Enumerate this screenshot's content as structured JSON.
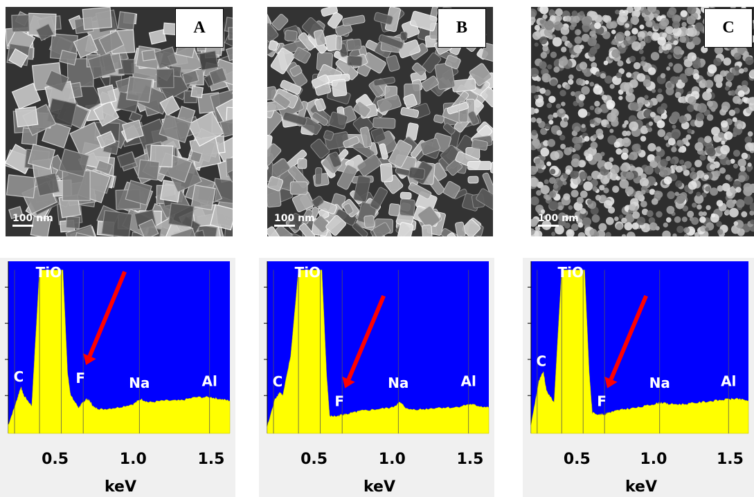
{
  "panels": [
    {
      "label": "A",
      "scale_bar": "100 nm",
      "eds": {
        "peak_labels": [
          "TiO",
          "C",
          "F",
          "Na",
          "Al"
        ],
        "xticks": [
          "0.5",
          "1.0",
          "1.5"
        ],
        "xlabel": "keV"
      }
    },
    {
      "label": "B",
      "scale_bar": "100 nm",
      "eds": {
        "peak_labels": [
          "TiO",
          "C",
          "F",
          "Na",
          "Al"
        ],
        "xticks": [
          "0.5",
          "1.0",
          "1.5"
        ],
        "xlabel": "keV"
      }
    },
    {
      "label": "C",
      "scale_bar": "100 nm",
      "eds": {
        "peak_labels": [
          "TiO",
          "C",
          "F",
          "Na",
          "Al"
        ],
        "xticks": [
          "0.5",
          "1.0",
          "1.5"
        ],
        "xlabel": "keV"
      }
    }
  ],
  "colors": {
    "plot_background": "#0000ff",
    "spectrum_fill": "#ffff00",
    "arrow": "#ff0000",
    "panel_frame": "#f0f0f0"
  },
  "chart_data": [
    {
      "type": "area",
      "panel": "A",
      "x": [
        0.2,
        0.25,
        0.28,
        0.3,
        0.35,
        0.4,
        0.5,
        0.55,
        0.58,
        0.6,
        0.65,
        0.68,
        0.7,
        0.72,
        0.75,
        0.8,
        0.9,
        1.0,
        1.05,
        1.1,
        1.2,
        1.3,
        1.4,
        1.5,
        1.55,
        1.62
      ],
      "values": [
        0.05,
        0.18,
        0.27,
        0.22,
        0.16,
        0.95,
        0.95,
        0.95,
        0.35,
        0.22,
        0.15,
        0.18,
        0.2,
        0.19,
        0.15,
        0.14,
        0.15,
        0.17,
        0.2,
        0.18,
        0.19,
        0.19,
        0.21,
        0.21,
        0.2,
        0.19
      ],
      "xlim": [
        0.2,
        1.62
      ],
      "ylim": [
        0,
        1
      ],
      "peaks": {
        "C": 0.28,
        "TiO": 0.45,
        "F": 0.68,
        "Na": 1.04,
        "Al": 1.49
      },
      "annotation_arrow": "F",
      "xticks": [
        0.5,
        1.0,
        1.5
      ],
      "xlabel": "keV"
    },
    {
      "type": "area",
      "panel": "B",
      "x": [
        0.2,
        0.25,
        0.28,
        0.3,
        0.35,
        0.4,
        0.5,
        0.55,
        0.58,
        0.6,
        0.65,
        0.68,
        0.7,
        0.75,
        0.8,
        0.9,
        1.0,
        1.05,
        1.1,
        1.2,
        1.3,
        1.4,
        1.5,
        1.55,
        1.62
      ],
      "values": [
        0.04,
        0.2,
        0.24,
        0.22,
        0.45,
        0.95,
        0.95,
        0.95,
        0.35,
        0.1,
        0.1,
        0.11,
        0.11,
        0.12,
        0.13,
        0.14,
        0.15,
        0.18,
        0.14,
        0.14,
        0.15,
        0.15,
        0.17,
        0.16,
        0.15
      ],
      "xlim": [
        0.2,
        1.62
      ],
      "ylim": [
        0,
        1
      ],
      "peaks": {
        "C": 0.28,
        "TiO": 0.45,
        "F": 0.68,
        "Na": 1.04,
        "Al": 1.49
      },
      "annotation_arrow": "F",
      "xticks": [
        0.5,
        1.0,
        1.5
      ],
      "xlabel": "keV"
    },
    {
      "type": "area",
      "panel": "C",
      "x": [
        0.2,
        0.25,
        0.28,
        0.3,
        0.35,
        0.4,
        0.5,
        0.55,
        0.58,
        0.6,
        0.65,
        0.68,
        0.7,
        0.75,
        0.8,
        0.9,
        1.0,
        1.05,
        1.1,
        1.2,
        1.3,
        1.4,
        1.5,
        1.55,
        1.62
      ],
      "values": [
        0.05,
        0.3,
        0.36,
        0.25,
        0.18,
        0.95,
        0.95,
        0.95,
        0.35,
        0.12,
        0.11,
        0.11,
        0.12,
        0.13,
        0.14,
        0.15,
        0.17,
        0.18,
        0.17,
        0.17,
        0.18,
        0.19,
        0.2,
        0.2,
        0.19
      ],
      "xlim": [
        0.2,
        1.62
      ],
      "ylim": [
        0,
        1
      ],
      "peaks": {
        "C": 0.28,
        "TiO": 0.45,
        "F": 0.68,
        "Na": 1.04,
        "Al": 1.49
      },
      "annotation_arrow": "F",
      "xticks": [
        0.5,
        1.0,
        1.5
      ],
      "xlabel": "keV"
    }
  ]
}
